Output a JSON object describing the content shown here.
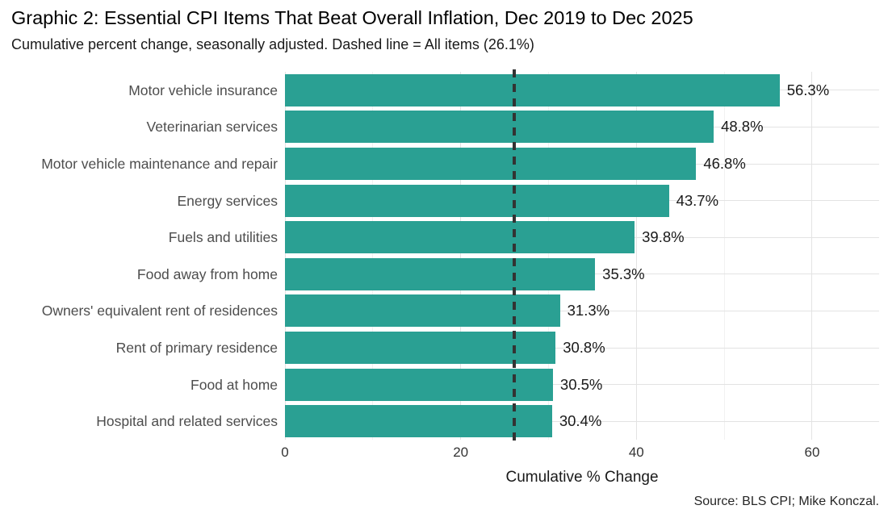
{
  "header": {
    "title": "Graphic 2: Essential CPI Items That Beat Overall Inflation, Dec 2019 to Dec 2025",
    "subtitle": "Cumulative percent change, seasonally adjusted. Dashed line = All items (26.1%)"
  },
  "footer": {
    "caption": "Source: BLS CPI; Mike Konczal."
  },
  "colors": {
    "bar": "#2aa093",
    "reference_line": "#333333",
    "grid_major": "#e3e3e3",
    "grid_minor": "#f1f1f1",
    "axis_text": "#4d4d4d",
    "background": "#ffffff"
  },
  "chart_data": {
    "type": "bar",
    "orientation": "horizontal",
    "title": "Graphic 2: Essential CPI Items That Beat Overall Inflation, Dec 2019 to Dec 2025",
    "subtitle": "Cumulative percent change, seasonally adjusted. Dashed line = All items (26.1%)",
    "xlabel": "Cumulative % Change",
    "ylabel": "",
    "categories": [
      "Motor vehicle insurance",
      "Veterinarian services",
      "Motor vehicle maintenance and repair",
      "Energy services",
      "Fuels and utilities",
      "Food away from home",
      "Owners' equivalent rent of residences",
      "Rent of primary residence",
      "Food at home",
      "Hospital and related services"
    ],
    "values": [
      56.3,
      48.8,
      46.8,
      43.7,
      39.8,
      35.3,
      31.3,
      30.8,
      30.5,
      30.4
    ],
    "bar_labels": [
      "56.3%",
      "48.8%",
      "46.8%",
      "43.7%",
      "39.8%",
      "35.3%",
      "31.3%",
      "30.8%",
      "30.5%",
      "30.4%"
    ],
    "x_ticks": [
      0,
      20,
      40,
      60
    ],
    "x_tick_labels": [
      "0",
      "20",
      "40",
      "60"
    ],
    "x_minor_gridlines": [
      10,
      30,
      50
    ],
    "xlim": [
      0,
      67.6
    ],
    "grid": true,
    "legend": false,
    "reference_line": {
      "value": 26.1,
      "label": "All items (26.1%)",
      "style": "dashed"
    },
    "caption": "Source: BLS CPI; Mike Konczal."
  }
}
